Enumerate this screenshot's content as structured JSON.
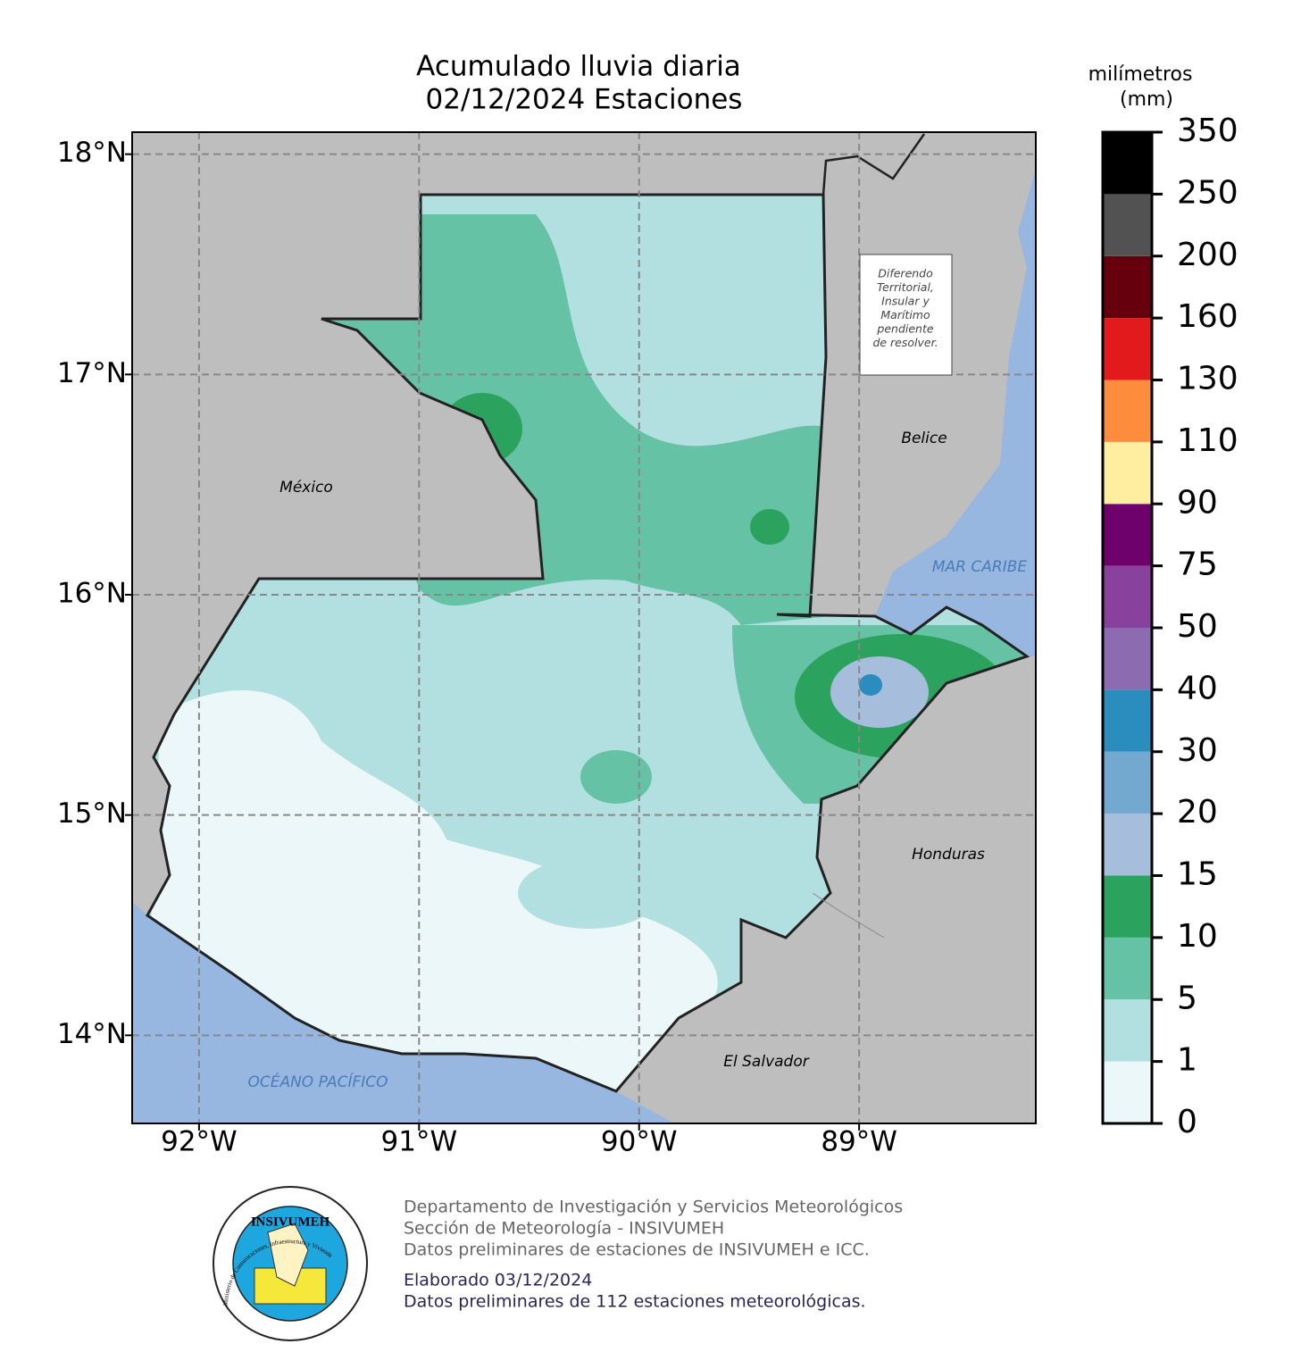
{
  "title": [
    "Acumulado lluvia diaria",
    "02/12/2024 Estaciones"
  ],
  "map": {
    "xlim": [
      -92.304,
      -88.197
    ],
    "ylim": [
      13.6,
      18.1
    ],
    "xticks": [
      {
        "value": -92,
        "label": "92°W"
      },
      {
        "value": -91,
        "label": "91°W"
      },
      {
        "value": -90,
        "label": "90°W"
      },
      {
        "value": -89,
        "label": "89°W"
      }
    ],
    "yticks": [
      {
        "value": 14,
        "label": "14°N"
      },
      {
        "value": 15,
        "label": "15°N"
      },
      {
        "value": 16,
        "label": "16°N"
      },
      {
        "value": 17,
        "label": "17°N"
      },
      {
        "value": 18,
        "label": "18°N"
      }
    ],
    "grid": true,
    "labels": [
      "México",
      "Belice",
      "MAR CARIBE",
      "Honduras",
      "El Salvador",
      "OCÉANO PACÍFICO"
    ],
    "notice": [
      "Diferendo",
      "Territorial,",
      "Insular y",
      "Marítimo",
      "pendiente",
      "de resolver."
    ]
  },
  "colorbar": {
    "title": [
      "milímetros",
      "(mm)"
    ],
    "bounds": [
      0,
      1,
      5,
      10,
      15,
      20,
      30,
      40,
      50,
      75,
      90,
      110,
      130,
      160,
      200,
      250,
      350
    ],
    "colors": [
      "#ebf7f8",
      "#b2e0e0",
      "#66c2a5",
      "#2ca25f",
      "#a6bddb",
      "#74a9cf",
      "#2b8cbe",
      "#8c6bb1",
      "#88419d",
      "#6e016b",
      "#ffeda0",
      "#fd8d3c",
      "#e31a1c",
      "#67000d",
      "#525252",
      "#000000"
    ]
  },
  "footer": {
    "lines": [
      "Departamento de Investigación y Servicios Meteorológicos",
      "Sección de Meteorología - INSIVUMEH",
      "Datos preliminares de estaciones de INSIVUMEH e ICC.",
      "Elaborado 03/12/2024",
      "Datos preliminares de 112 estaciones meteorológicas."
    ]
  },
  "logo": {
    "name": "INSIVUMEH",
    "ring": "Ministerio de Comunicaciones, Infraestructura y Vivienda"
  }
}
